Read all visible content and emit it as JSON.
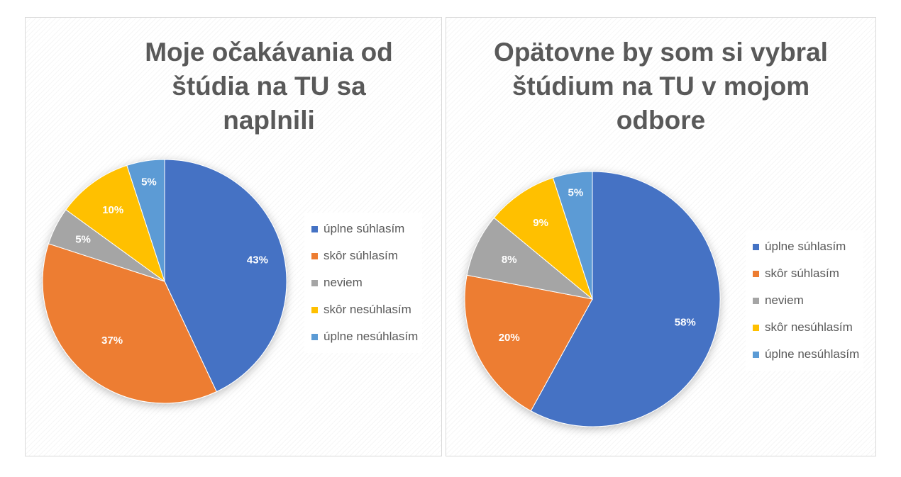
{
  "chart_data": [
    {
      "type": "pie",
      "title": "Moje očakávania od štúdia na TU sa naplnili",
      "categories": [
        "úplne súhlasím",
        "skôr súhlasím",
        "neviem",
        "skôr nesúhlasím",
        "úplne nesúhlasím"
      ],
      "values": [
        43,
        37,
        5,
        10,
        5
      ],
      "labels": [
        "43%",
        "37%",
        "5%",
        "10%",
        "5%"
      ],
      "colors": [
        "#4472C4",
        "#ED7D31",
        "#A5A5A5",
        "#FFC000",
        "#5B9BD5"
      ],
      "legend_position": "right"
    },
    {
      "type": "pie",
      "title": "Opätovne by som si vybral štúdium na TU v mojom odbore",
      "categories": [
        "úplne súhlasím",
        "skôr súhlasím",
        "neviem",
        "skôr nesúhlasím",
        "úplne nesúhlasím"
      ],
      "values": [
        58,
        20,
        8,
        9,
        5
      ],
      "labels": [
        "58%",
        "20%",
        "8%",
        "9%",
        "5%"
      ],
      "colors": [
        "#4472C4",
        "#ED7D31",
        "#A5A5A5",
        "#FFC000",
        "#5B9BD5"
      ],
      "legend_position": "right"
    }
  ]
}
